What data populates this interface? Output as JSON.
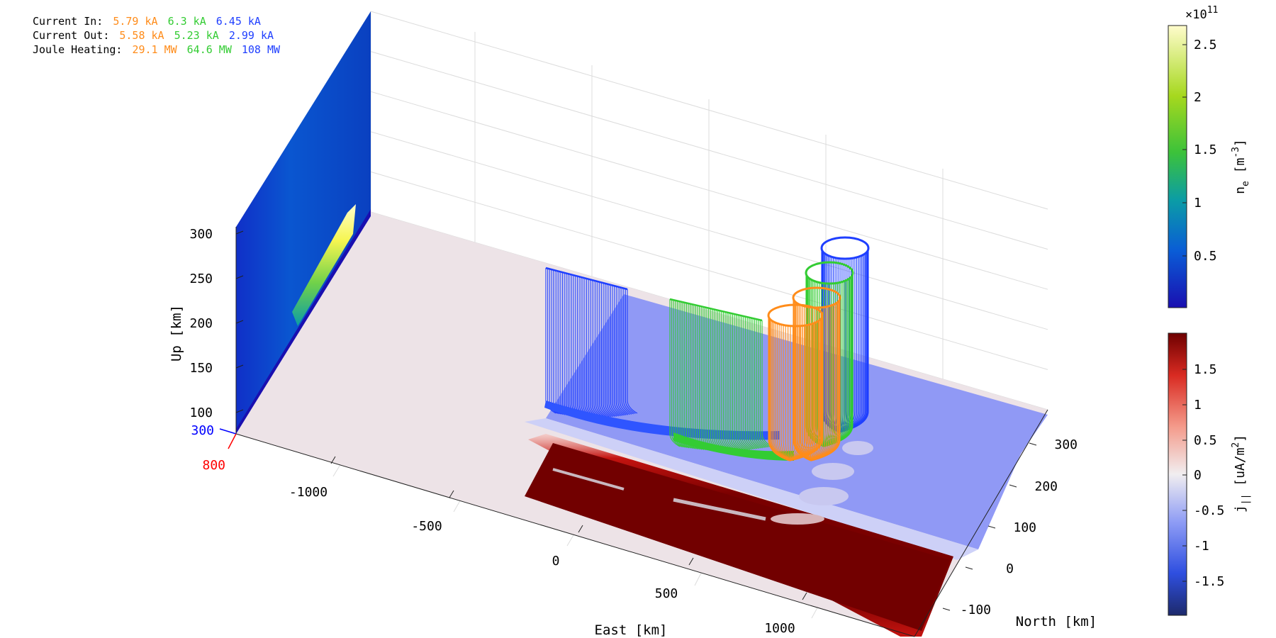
{
  "legend": {
    "rows": [
      {
        "label": "Current In:",
        "values": [
          "5.79 kA",
          "6.3 kA",
          "6.45 kA"
        ]
      },
      {
        "label": "Current Out:",
        "values": [
          "5.58 kA",
          "5.23 kA",
          "2.99 kA"
        ]
      },
      {
        "label": "Joule Heating:",
        "values": [
          "29.1 MW",
          "64.6 MW",
          "108 MW"
        ]
      }
    ],
    "colors": [
      "#ff8c1a",
      "#33cc33",
      "#1f3fff"
    ]
  },
  "axes": {
    "up_label": "Up [km]",
    "east_label": "East [km]",
    "north_label": "North [km]",
    "up_ticks": [
      "300",
      "250",
      "200",
      "150",
      "100"
    ],
    "east_ticks": [
      "-1000",
      "-500",
      "0",
      "500",
      "1000"
    ],
    "north_ticks": [
      "300",
      "200",
      "100",
      "0",
      "-100"
    ],
    "corner_blue": "300",
    "corner_red": "800"
  },
  "colorbar_ne": {
    "exponent_label": "×10",
    "exponent_power": "11",
    "label_main": "n",
    "label_sub": "e",
    "label_unit_open": " [m",
    "label_unit_sup": "-3",
    "label_unit_close": "]",
    "ticks": [
      "2.5",
      "2",
      "1.5",
      "1",
      "0.5"
    ]
  },
  "colorbar_j": {
    "label_main": "j",
    "label_sub": "||",
    "label_unit_open": " [uA/m",
    "label_unit_sup": "2",
    "label_unit_close": "]",
    "ticks": [
      "1.5",
      "1",
      "0.5",
      "0",
      "-0.5",
      "-1",
      "-1.5"
    ]
  },
  "chart_data": [
    {
      "type": "line",
      "title": "",
      "series": [
        {
          "color": "#ff8c1a",
          "current_in_kA": 5.79,
          "current_out_kA": 5.58,
          "joule_heating_MW": 29.1
        },
        {
          "color": "#33cc33",
          "current_in_kA": 6.3,
          "current_out_kA": 5.23,
          "joule_heating_MW": 64.6
        },
        {
          "color": "#1f3fff",
          "current_in_kA": 6.45,
          "current_out_kA": 2.99,
          "joule_heating_MW": 108
        }
      ],
      "xlabel": "East [km]",
      "ylabel": "North [km]",
      "zlabel": "Up [km]",
      "x_ticks": [
        -1000,
        -500,
        0,
        500,
        1000
      ],
      "y_ticks": [
        -100,
        0,
        100,
        200,
        300
      ],
      "z_ticks": [
        100,
        150,
        200,
        250,
        300
      ],
      "grid": true
    },
    {
      "type": "heatmap",
      "colorbar": "n_e [m^-3]",
      "scale_exponent": 11,
      "ticks": [
        0.5,
        1,
        1.5,
        2,
        2.5
      ],
      "range": [
        0.05,
        2.7
      ]
    },
    {
      "type": "heatmap",
      "colorbar": "j_|| [uA/m^2]",
      "ticks": [
        -1.5,
        -1,
        -0.5,
        0,
        0.5,
        1,
        1.5
      ],
      "range": [
        -1.9,
        1.9
      ]
    }
  ]
}
